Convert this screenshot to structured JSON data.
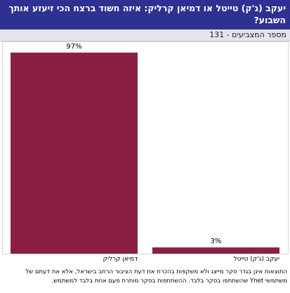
{
  "header": {
    "title": "יעקב (ג'ק) טייטל או דמיאן קרליק: איזה חשוד ברצח הכי זיעזע אותך השבוע?"
  },
  "subheader": {
    "voters_text": "מספר המצביעים - 131"
  },
  "chart_data": {
    "type": "bar",
    "categories": [
      "דמיאן קרליק",
      "יעקב (ג'ק) טייטל"
    ],
    "values": [
      97,
      3
    ],
    "value_labels": [
      "97%",
      "3%"
    ],
    "ylim": [
      0,
      100
    ],
    "grid": false,
    "bar_color": "#8b1e45"
  },
  "footnote": {
    "text": "התוצאות אינן בגדר סקר מייצג ולא משקפות בהכרח את דעת הציבור הרחב בישראל, אלא את דעתם של משתמשי Ynet שהשתתפו בסקר בלבד. ההשתתפות בסקר מותרת פעם אחת בלבד למשתמש."
  }
}
